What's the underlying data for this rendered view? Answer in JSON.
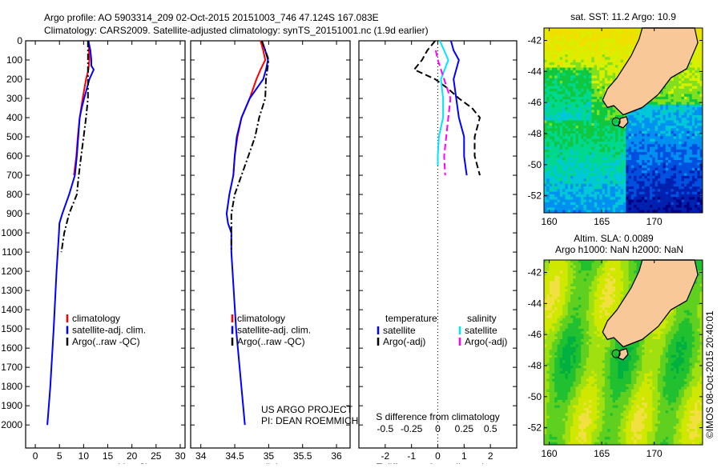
{
  "title_line1": "Argo profile: AO 5903314_209 02-Oct-2015 20151003_746 47.124S 167.083E",
  "title_line2": "Climatology: CARS2009. Satellite-adjusted climatology: synTS_20151001.nc (1.9d earlier)",
  "credit_line1": "US ARGO PROJECT",
  "credit_line2": "PI: DEAN ROEMMICH",
  "imos_stamp": "©IMOS 08-Oct-2015 20:40:01",
  "colors": {
    "climatology": "#ff0000",
    "satellite": "#0000ff",
    "argo": "#000000",
    "s_satellite": "#00e5ff",
    "s_argo": "#ff00ff"
  },
  "chart_data": [
    {
      "type": "line",
      "id": "temperature",
      "xlabel": "temperature (deg C)",
      "ylabel": "",
      "xlim": [
        -2,
        31
      ],
      "ylim": [
        2120,
        0
      ],
      "xticks": [
        0,
        5,
        10,
        15,
        20,
        25,
        30
      ],
      "yticks": [
        0,
        100,
        200,
        300,
        400,
        500,
        600,
        700,
        800,
        900,
        1000,
        1100,
        1200,
        1300,
        1400,
        1500,
        1600,
        1700,
        1800,
        1900,
        2000
      ],
      "legend": [
        "climatology",
        "satellite-adj. clim.",
        "Argo(..raw -QC)"
      ],
      "series": [
        {
          "name": "climatology",
          "color": "#ff0000",
          "dash": "",
          "depth": [
            0,
            50,
            100,
            150,
            200,
            300,
            400,
            500,
            600,
            700
          ],
          "values": [
            11,
            11.1,
            11.2,
            11,
            10.5,
            9.8,
            9.2,
            8.8,
            8.5,
            8
          ]
        },
        {
          "name": "satellite-adj. clim.",
          "color": "#0000ff",
          "dash": "",
          "depth": [
            0,
            50,
            100,
            130,
            150,
            200,
            300,
            350,
            400,
            500,
            600,
            700,
            800,
            900,
            950,
            1000,
            1200,
            1500,
            1800,
            2000
          ],
          "values": [
            11,
            11.4,
            11.6,
            11.6,
            12.1,
            11.2,
            10.1,
            9.6,
            9.2,
            8.9,
            8.6,
            8.2,
            7,
            5.6,
            5,
            4.9,
            4.4,
            3.8,
            3.1,
            2.5
          ]
        },
        {
          "name": "Argo(..raw -QC)",
          "color": "#000000",
          "dash": "8,3,2,3",
          "depth": [
            0,
            100,
            200,
            300,
            400,
            500,
            600,
            700,
            800,
            900,
            1000,
            1100
          ],
          "values": [
            10.9,
            10.9,
            10.9,
            10.9,
            10.5,
            10,
            9.5,
            9,
            8.6,
            7,
            6,
            5.4
          ]
        }
      ]
    },
    {
      "type": "line",
      "id": "salinity",
      "xlabel": "salinity",
      "ylabel": "",
      "xlim": [
        33.85,
        36.2
      ],
      "ylim": [
        2120,
        0
      ],
      "xticks": [
        34,
        34.5,
        35,
        35.5,
        36
      ],
      "legend": [
        "climatology",
        "satellite-adj. clim.",
        "Argo(..raw -QC)"
      ],
      "series": [
        {
          "name": "climatology",
          "color": "#ff0000",
          "dash": "",
          "depth": [
            0,
            50,
            100,
            150,
            200,
            300,
            400,
            500,
            600,
            700
          ],
          "values": [
            34.88,
            34.92,
            34.95,
            34.88,
            34.82,
            34.72,
            34.6,
            34.54,
            34.5,
            34.48
          ]
        },
        {
          "name": "satellite-adj. clim.",
          "color": "#0000ff",
          "dash": "",
          "depth": [
            0,
            50,
            100,
            150,
            200,
            300,
            400,
            500,
            600,
            700,
            800,
            900,
            950,
            1000,
            1100,
            1500,
            2000
          ],
          "values": [
            34.9,
            34.95,
            34.99,
            34.96,
            34.92,
            34.72,
            34.6,
            34.53,
            34.5,
            34.48,
            34.42,
            34.38,
            34.4,
            34.45,
            34.45,
            34.52,
            34.65
          ]
        },
        {
          "name": "Argo(..raw -QC)",
          "color": "#000000",
          "dash": "8,3,2,3",
          "depth": [
            0,
            100,
            200,
            300,
            400,
            500,
            600,
            700,
            800,
            900,
            1000,
            1100
          ],
          "values": [
            34.9,
            35,
            34.96,
            34.95,
            34.86,
            34.8,
            34.7,
            34.6,
            34.5,
            34.45,
            34.45,
            34.45
          ]
        }
      ]
    },
    {
      "type": "line",
      "id": "difference",
      "xlabel": "T difference from climatology",
      "x2label": "S difference from climatology",
      "xlim": [
        -3,
        3
      ],
      "x2lim": [
        -0.75,
        0.75
      ],
      "ylim": [
        2120,
        0
      ],
      "xticks": [
        -2,
        -1,
        0,
        1,
        2
      ],
      "x2ticks": [
        "-0.5",
        "-0.25",
        "0",
        "0.25",
        "0.5"
      ],
      "legend_titles": [
        "temperature",
        "salinity"
      ],
      "legend": [
        "satellite",
        "Argo(-adj)",
        "satellite",
        "Argo(-adj)"
      ],
      "series": [
        {
          "name": "T satellite",
          "axis": "T",
          "color": "#0000ff",
          "dash": "",
          "depth": [
            0,
            50,
            100,
            150,
            200,
            300,
            400,
            500,
            600,
            700
          ],
          "values": [
            0.5,
            0.6,
            0.8,
            0.7,
            0.6,
            0.7,
            0.8,
            1.0,
            1.0,
            1.1
          ]
        },
        {
          "name": "T Argo(-adj)",
          "axis": "T",
          "color": "#000000",
          "dash": "8,4",
          "depth": [
            0,
            50,
            100,
            150,
            200,
            250,
            300,
            350,
            400,
            500,
            600,
            700
          ],
          "values": [
            -0.1,
            -0.4,
            -0.6,
            -0.9,
            -0.1,
            0.4,
            0.8,
            1.3,
            1.6,
            1.4,
            1.4,
            1.6
          ]
        },
        {
          "name": "S satellite",
          "axis": "S",
          "color": "#00e5ff",
          "dash": "",
          "depth": [
            0,
            50,
            100,
            200,
            300,
            400,
            500,
            600,
            650
          ],
          "values": [
            0.02,
            0.06,
            0.1,
            0.03,
            0.05,
            0.05,
            0.01,
            0.0,
            0.0
          ]
        },
        {
          "name": "S Argo(-adj)",
          "axis": "S",
          "color": "#ff00ff",
          "dash": "8,4",
          "depth": [
            50,
            100,
            200,
            300,
            400,
            500,
            600,
            700
          ],
          "values": [
            -0.02,
            0.0,
            0.06,
            0.12,
            0.1,
            0.08,
            0.06,
            0.07
          ]
        }
      ]
    },
    {
      "type": "heatmap",
      "id": "sst_map",
      "title": "sat. SST: 11.2 Argo: 10.9",
      "xlim": [
        159.5,
        174.6
      ],
      "ylim": [
        -53.1,
        -41.2
      ],
      "xticks": [
        160,
        165,
        170
      ],
      "yticks": [
        -42,
        -44,
        -46,
        -48,
        -50,
        -52
      ]
    },
    {
      "type": "heatmap",
      "id": "sla_map",
      "title": "Altim. SLA: 0.0089",
      "subtitle": "Argo h1000: NaN h2000: NaN",
      "xlim": [
        159.5,
        174.6
      ],
      "ylim": [
        -53.1,
        -41.2
      ],
      "xticks": [
        160,
        165,
        170
      ],
      "yticks": [
        -42,
        -44,
        -46,
        -48,
        -50,
        -52
      ]
    }
  ]
}
